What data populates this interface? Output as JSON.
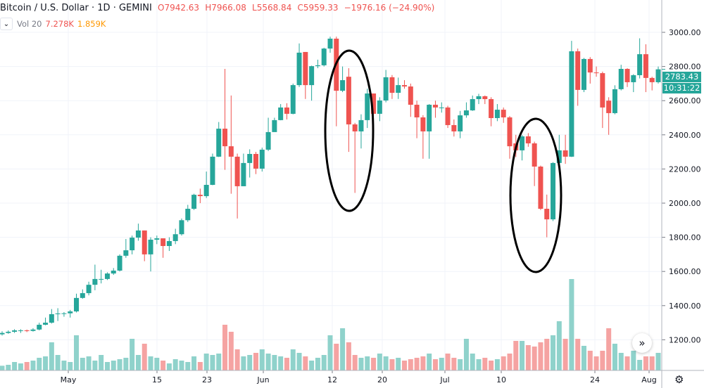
{
  "header": {
    "symbol": "Bitcoin / U.S. Dollar · 1D · GEMINI",
    "open": "O7942.63",
    "high": "H7966.08",
    "low": "L5568.84",
    "close": "C5959.33",
    "change": "−1976.16 (−24.90%)",
    "vol_label": "Vol 20",
    "vol_value": "7.278K",
    "vol_ma": "1.859K"
  },
  "price_tag": {
    "price": "2783.43",
    "countdown": "10:31:22"
  },
  "icons": {
    "collapse": "chevron-down-icon",
    "scroll": "double-chevron-right-icon",
    "settings": "gear-icon"
  },
  "colors": {
    "up": "#26a69a",
    "down": "#ef5350",
    "up_volume": "#8fd2cb",
    "down_volume": "#f5a3a2",
    "annotation": "#000000"
  },
  "chart_data": {
    "type": "candlestick",
    "title": "Bitcoin / U.S. Dollar · 1D · GEMINI",
    "ylim": [
      1050,
      3180
    ],
    "y_ticks": [
      "3000.00",
      "2800.00",
      "2600.00",
      "2400.00",
      "2200.00",
      "2000.00",
      "1800.00",
      "1600.00",
      "1400.00",
      "1200.00"
    ],
    "x_ticks": [
      "May",
      "15",
      "23",
      "Jun",
      "12",
      "20",
      "Jul",
      "10",
      "24",
      "Aug"
    ],
    "grid": true,
    "open": [
      1232,
      1240,
      1247,
      1255,
      1255,
      1252,
      1260,
      1288,
      1300,
      1350,
      1354,
      1355,
      1366,
      1445,
      1473,
      1522,
      1556,
      1556,
      1588,
      1605,
      1692,
      1724,
      1798,
      1840,
      1700,
      1786,
      1794,
      1749,
      1778,
      1818,
      1900,
      1967,
      2049,
      2041,
      2107,
      2272,
      2436,
      2333,
      2272,
      2099,
      2235,
      2288,
      2202,
      2313,
      2416,
      2486,
      2560,
      2523,
      2691,
      2885,
      2691,
      2802,
      2807,
      2905,
      2963,
      2658,
      2740,
      2461,
      2420,
      2486,
      2642,
      2523,
      2601,
      2737,
      2646,
      2691,
      2683,
      2576,
      2502,
      2420,
      2576,
      2560,
      2560,
      2457,
      2420,
      2514,
      2543,
      2609,
      2626,
      2609,
      2498,
      2547,
      2502,
      2350,
      2309,
      2391,
      2350,
      2214,
      1967,
      1905,
      2235,
      2309,
      2272,
      2889,
      2663,
      2844,
      2765,
      2761,
      2600,
      2527,
      2667,
      2786,
      2708,
      2749,
      2872,
      2733,
      2708
    ],
    "high": [
      1250,
      1255,
      1262,
      1262,
      1260,
      1268,
      1300,
      1330,
      1380,
      1385,
      1362,
      1375,
      1470,
      1495,
      1540,
      1640,
      1610,
      1595,
      1620,
      1700,
      1790,
      1810,
      1880,
      1840,
      1800,
      1810,
      1794,
      1800,
      1850,
      1910,
      1990,
      2055,
      2085,
      2185,
      2290,
      2475,
      2786,
      2630,
      2290,
      2290,
      2315,
      2300,
      2325,
      2500,
      2500,
      2580,
      2585,
      2700,
      2935,
      2885,
      2805,
      2840,
      2910,
      2975,
      2975,
      2800,
      2790,
      2470,
      2520,
      2670,
      2640,
      2620,
      2780,
      2750,
      2735,
      2720,
      2700,
      2600,
      2515,
      2580,
      2600,
      2590,
      2570,
      2490,
      2540,
      2590,
      2630,
      2640,
      2630,
      2620,
      2580,
      2560,
      2510,
      2400,
      2400,
      2410,
      2360,
      2220,
      2050,
      2240,
      2400,
      2400,
      2950,
      2905,
      2850,
      2855,
      2800,
      2770,
      2620,
      2690,
      2810,
      2790,
      2755,
      2965,
      2930,
      2740,
      2800
    ],
    "low": [
      1225,
      1235,
      1240,
      1240,
      1245,
      1248,
      1255,
      1285,
      1295,
      1310,
      1335,
      1330,
      1360,
      1440,
      1460,
      1490,
      1530,
      1550,
      1580,
      1600,
      1680,
      1700,
      1780,
      1660,
      1600,
      1760,
      1680,
      1720,
      1760,
      1810,
      1890,
      1960,
      2000,
      2030,
      2105,
      2270,
      2195,
      2055,
      1910,
      2100,
      2150,
      2170,
      2185,
      2305,
      2420,
      2485,
      2490,
      2520,
      2680,
      2610,
      2600,
      2790,
      2800,
      2880,
      2450,
      2650,
      2300,
      2060,
      2320,
      2440,
      2460,
      2480,
      2590,
      2610,
      2610,
      2670,
      2505,
      2380,
      2260,
      2260,
      2500,
      2530,
      2440,
      2390,
      2380,
      2500,
      2540,
      2580,
      2580,
      2450,
      2480,
      2470,
      2260,
      2270,
      2250,
      2330,
      2100,
      1960,
      1800,
      1895,
      2200,
      2230,
      2270,
      2570,
      2650,
      2700,
      2740,
      2440,
      2400,
      2520,
      2660,
      2680,
      2650,
      2730,
      2650,
      2660,
      2700
    ],
    "close": [
      1240,
      1247,
      1255,
      1255,
      1252,
      1260,
      1288,
      1300,
      1350,
      1354,
      1355,
      1366,
      1445,
      1473,
      1522,
      1556,
      1556,
      1588,
      1605,
      1692,
      1724,
      1798,
      1840,
      1700,
      1786,
      1794,
      1749,
      1778,
      1818,
      1900,
      1967,
      2049,
      2041,
      2107,
      2272,
      2436,
      2333,
      2272,
      2099,
      2235,
      2288,
      2202,
      2313,
      2416,
      2486,
      2560,
      2523,
      2691,
      2881,
      2691,
      2802,
      2807,
      2905,
      2963,
      2658,
      2720,
      2461,
      2420,
      2486,
      2642,
      2523,
      2601,
      2737,
      2646,
      2691,
      2683,
      2576,
      2502,
      2420,
      2576,
      2560,
      2560,
      2457,
      2420,
      2514,
      2543,
      2609,
      2626,
      2609,
      2498,
      2547,
      2502,
      2333,
      2309,
      2391,
      2350,
      2214,
      1967,
      1905,
      2235,
      2309,
      2272,
      2889,
      2663,
      2844,
      2765,
      2761,
      2560,
      2527,
      2667,
      2786,
      2708,
      2749,
      2872,
      2733,
      2708,
      2783.43
    ],
    "volume_k": [
      2,
      2.4,
      3.6,
      3,
      3.6,
      4.2,
      5.4,
      6,
      12,
      6.6,
      4.2,
      3.6,
      15,
      5.4,
      6,
      4.2,
      6.6,
      3.6,
      4.2,
      4.8,
      5.4,
      13.5,
      6.6,
      11.4,
      6,
      5.4,
      4.2,
      3,
      4.8,
      4.2,
      3.6,
      6,
      3.6,
      7.2,
      6.6,
      7.2,
      19.5,
      16.5,
      9,
      6,
      6.6,
      7.5,
      9,
      7.2,
      6.6,
      6,
      5.4,
      9,
      7.5,
      6,
      4.2,
      5.4,
      6.6,
      15,
      11.4,
      18,
      12,
      6.6,
      5.4,
      6,
      5.4,
      7.2,
      6,
      4.8,
      5.4,
      4.2,
      4.8,
      5.4,
      6,
      7.2,
      4.8,
      5.4,
      7.2,
      5.4,
      4.8,
      13.5,
      7.2,
      4.8,
      5.4,
      4.2,
      4.8,
      6,
      7.2,
      12.6,
      12.6,
      10.8,
      10.2,
      12,
      13.5,
      15,
      21,
      13.5,
      39,
      13.5,
      10.5,
      8.4,
      6,
      8.4,
      18,
      11.4,
      7.5,
      6,
      8.4,
      4.5,
      6,
      6,
      7.5
    ],
    "annotations": [
      "ellipse",
      "ellipse"
    ]
  }
}
